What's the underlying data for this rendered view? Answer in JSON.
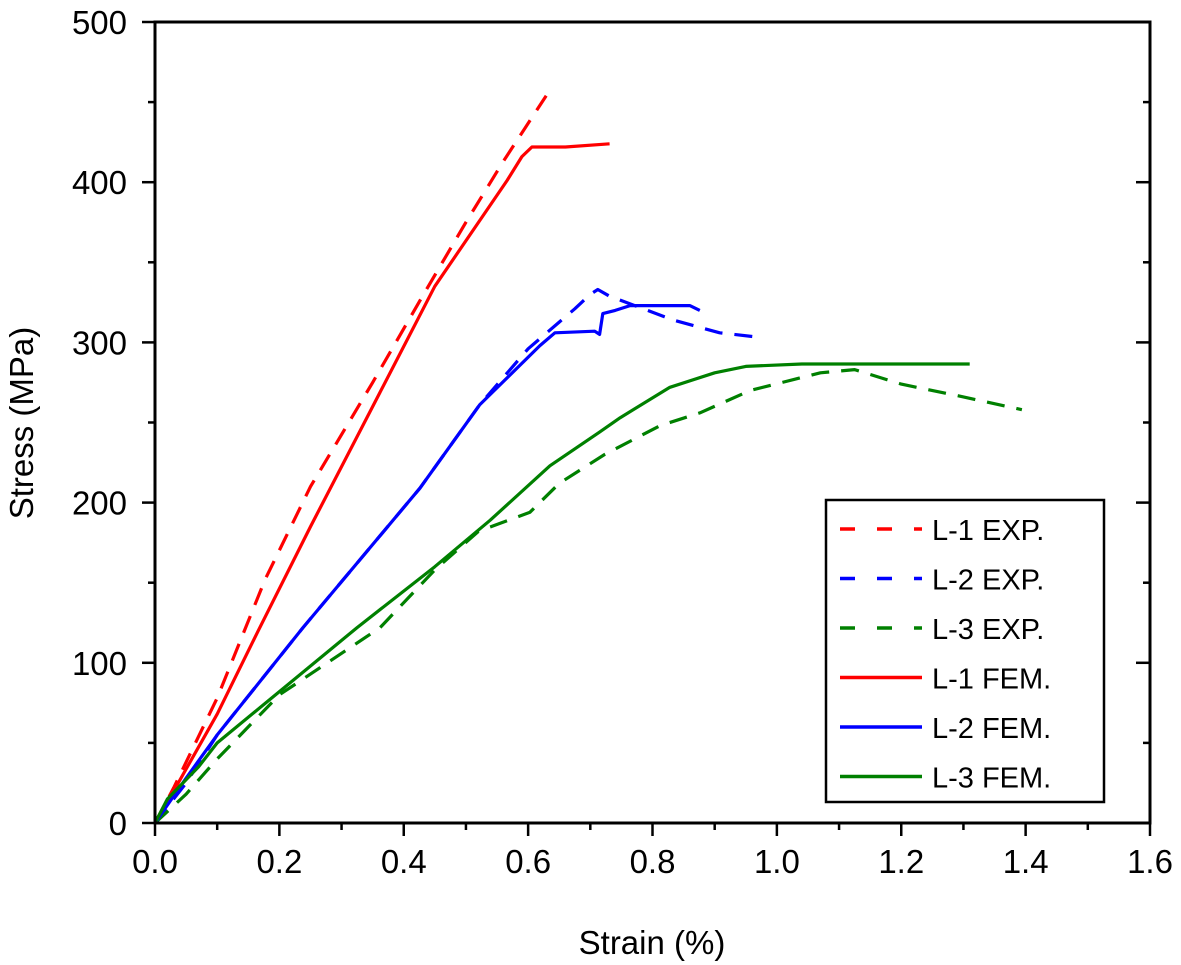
{
  "chart_data": {
    "type": "line",
    "title": "",
    "xlabel": "Strain (%)",
    "ylabel": "Stress (MPa)",
    "xlim": [
      0,
      1.6
    ],
    "ylim": [
      0,
      500
    ],
    "xticks": [
      0.0,
      0.2,
      0.4,
      0.6,
      0.8,
      1.0,
      1.2,
      1.4,
      1.6
    ],
    "xtick_labels": [
      "0.0",
      "0.2",
      "0.4",
      "0.6",
      "0.8",
      "1.0",
      "1.2",
      "1.4",
      "1.6"
    ],
    "yticks": [
      0,
      100,
      200,
      300,
      400,
      500
    ],
    "ytick_labels": [
      "0",
      "100",
      "200",
      "300",
      "400",
      "500"
    ],
    "grid": false,
    "legend_position": "bottom-right",
    "series": [
      {
        "name": "L-1 EXP.",
        "color": "#ff0000",
        "style": "dashed",
        "points": [
          [
            0,
            0
          ],
          [
            0.03,
            22
          ],
          [
            0.1,
            78
          ],
          [
            0.177,
            152
          ],
          [
            0.25,
            210
          ],
          [
            0.35,
            275
          ],
          [
            0.426,
            326
          ],
          [
            0.5,
            375
          ],
          [
            0.56,
            413
          ],
          [
            0.629,
            454
          ]
        ]
      },
      {
        "name": "L-2 EXP.",
        "color": "#0000ff",
        "style": "dashed",
        "points": [
          [
            0,
            0
          ],
          [
            0.05,
            25
          ],
          [
            0.1,
            55
          ],
          [
            0.238,
            122
          ],
          [
            0.426,
            209
          ],
          [
            0.522,
            261
          ],
          [
            0.6,
            296
          ],
          [
            0.651,
            313
          ],
          [
            0.675,
            321
          ],
          [
            0.7,
            330
          ],
          [
            0.712,
            333
          ],
          [
            0.73,
            329
          ],
          [
            0.833,
            314
          ],
          [
            0.908,
            306
          ],
          [
            0.976,
            303
          ]
        ]
      },
      {
        "name": "L-3 EXP.",
        "color": "#008000",
        "style": "dashed",
        "points": [
          [
            0,
            0
          ],
          [
            0.05,
            18
          ],
          [
            0.1,
            40
          ],
          [
            0.2,
            80
          ],
          [
            0.362,
            122
          ],
          [
            0.45,
            158
          ],
          [
            0.52,
            182
          ],
          [
            0.603,
            194
          ],
          [
            0.65,
            212
          ],
          [
            0.723,
            230
          ],
          [
            0.812,
            248
          ],
          [
            0.876,
            256
          ],
          [
            0.957,
            270
          ],
          [
            1.07,
            281
          ],
          [
            1.125,
            283
          ],
          [
            1.2,
            274
          ],
          [
            1.3,
            266
          ],
          [
            1.394,
            258
          ]
        ]
      },
      {
        "name": "L-1 FEM.",
        "color": "#ff0000",
        "style": "solid",
        "points": [
          [
            0,
            0
          ],
          [
            0.03,
            20
          ],
          [
            0.1,
            68
          ],
          [
            0.166,
            120
          ],
          [
            0.25,
            185
          ],
          [
            0.35,
            260
          ],
          [
            0.45,
            335
          ],
          [
            0.566,
            401
          ],
          [
            0.59,
            416
          ],
          [
            0.606,
            422
          ],
          [
            0.66,
            422
          ],
          [
            0.731,
            424
          ]
        ]
      },
      {
        "name": "L-2 FEM.",
        "color": "#0000ff",
        "style": "solid",
        "points": [
          [
            0,
            0
          ],
          [
            0.05,
            28
          ],
          [
            0.1,
            55
          ],
          [
            0.238,
            122
          ],
          [
            0.426,
            209
          ],
          [
            0.522,
            261
          ],
          [
            0.619,
            298
          ],
          [
            0.643,
            306
          ],
          [
            0.707,
            307
          ],
          [
            0.715,
            305
          ],
          [
            0.72,
            318
          ],
          [
            0.74,
            320
          ],
          [
            0.764,
            323
          ],
          [
            0.86,
            323
          ],
          [
            0.876,
            320
          ]
        ]
      },
      {
        "name": "L-3 FEM.",
        "color": "#008000",
        "style": "solid",
        "points": [
          [
            0,
            0
          ],
          [
            0.02,
            15
          ],
          [
            0.07,
            35
          ],
          [
            0.1,
            50
          ],
          [
            0.2,
            82
          ],
          [
            0.325,
            122
          ],
          [
            0.45,
            160
          ],
          [
            0.539,
            189
          ],
          [
            0.635,
            223
          ],
          [
            0.715,
            244
          ],
          [
            0.748,
            253
          ],
          [
            0.828,
            272
          ],
          [
            0.9,
            281
          ],
          [
            0.95,
            285
          ],
          [
            1.04,
            286.5
          ],
          [
            1.31,
            286.5
          ]
        ]
      }
    ]
  }
}
